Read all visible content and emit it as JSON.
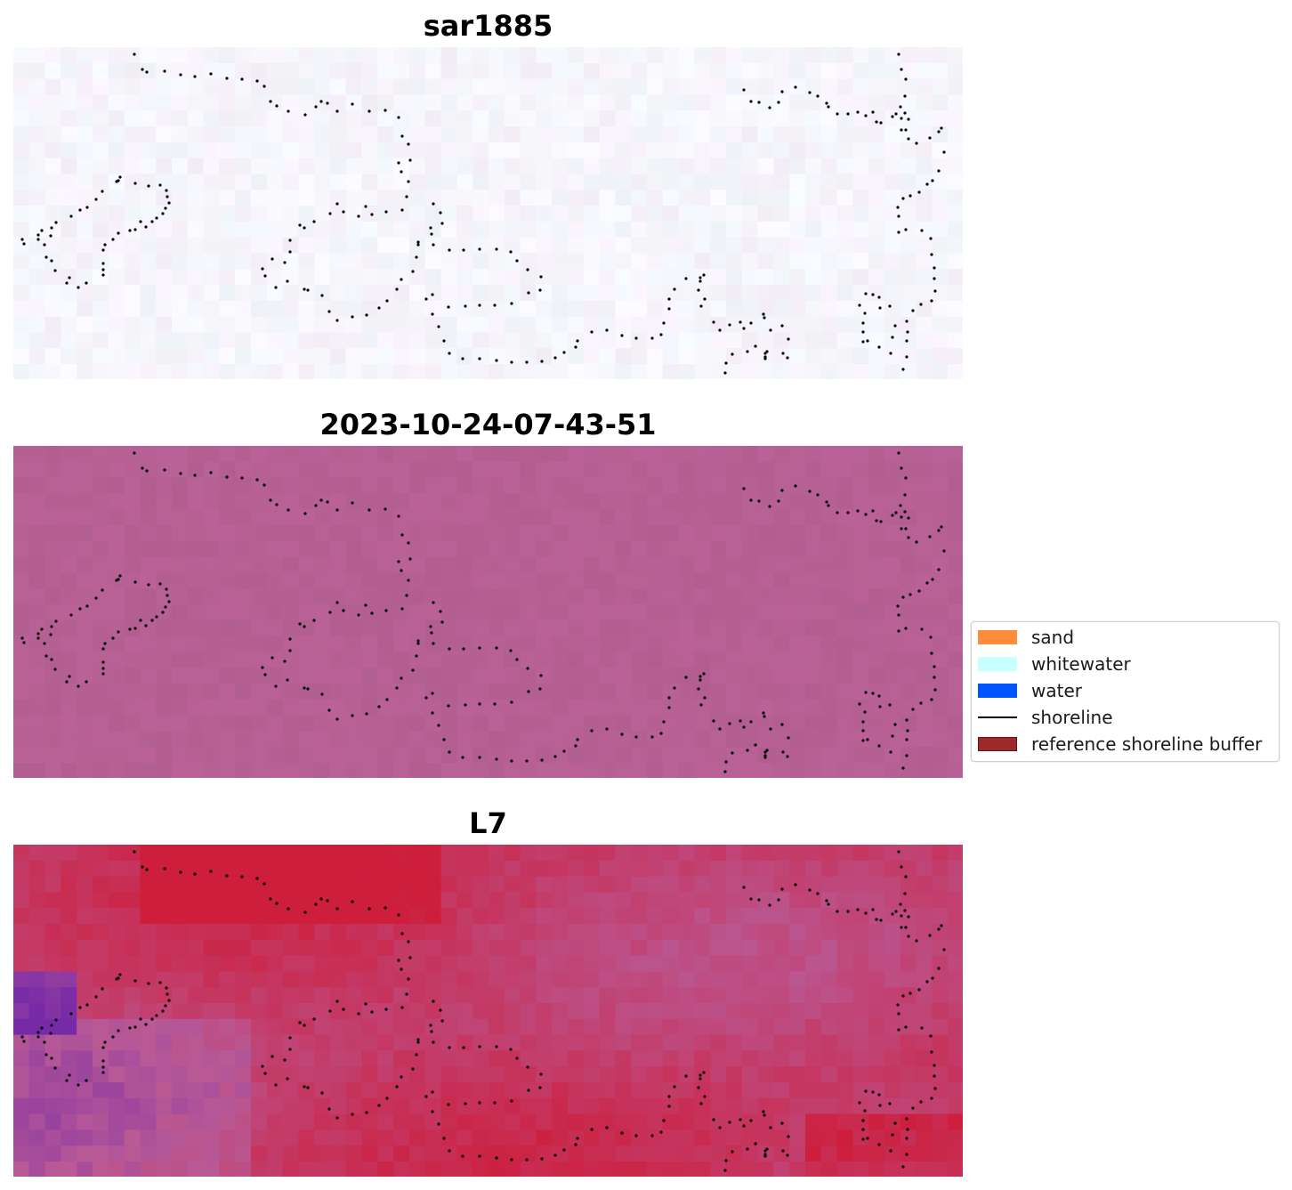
{
  "panels": [
    {
      "title": "sar1885",
      "style": "sar"
    },
    {
      "title": "2023-10-24-07-43-51",
      "style": "rgb"
    },
    {
      "title": "L7",
      "style": "l7"
    }
  ],
  "legend": [
    {
      "label": "sand",
      "color": "#ff8c3a",
      "type": "patch"
    },
    {
      "label": "whitewater",
      "color": "#c8ffff",
      "type": "patch"
    },
    {
      "label": "water",
      "color": "#0055ff",
      "type": "patch"
    },
    {
      "label": "shoreline",
      "color": "#000000",
      "type": "line"
    },
    {
      "label": "reference shoreline buffer",
      "color": "#9c2a2a",
      "type": "patch"
    }
  ]
}
